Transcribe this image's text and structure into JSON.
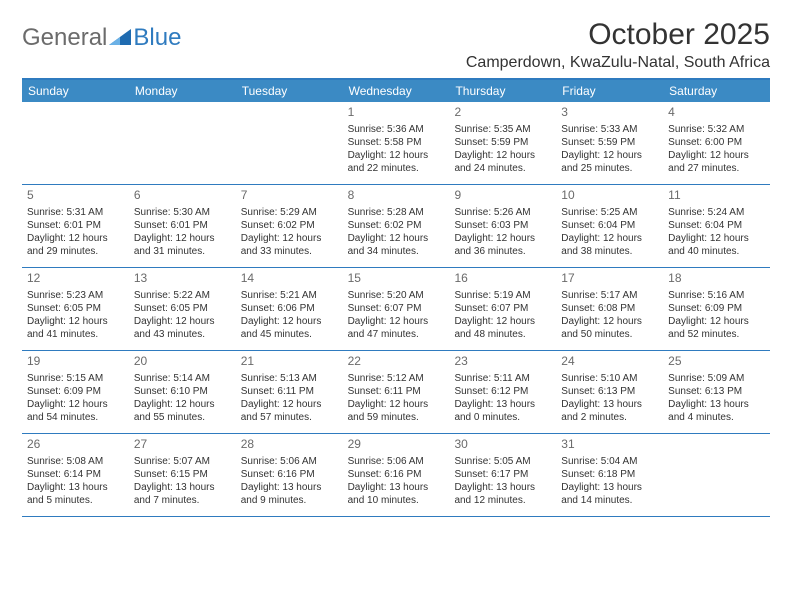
{
  "brand": {
    "part1": "General",
    "part2": "Blue"
  },
  "title": "October 2025",
  "location": "Camperdown, KwaZulu-Natal, South Africa",
  "colors": {
    "header_bg": "#3b8ac4",
    "border": "#2f7bbf",
    "text": "#333333",
    "daynum": "#6a6a6a"
  },
  "day_names": [
    "Sunday",
    "Monday",
    "Tuesday",
    "Wednesday",
    "Thursday",
    "Friday",
    "Saturday"
  ],
  "weeks": [
    [
      {
        "n": "",
        "empty": true
      },
      {
        "n": "",
        "empty": true
      },
      {
        "n": "",
        "empty": true
      },
      {
        "n": "1",
        "sr": "5:36 AM",
        "ss": "5:58 PM",
        "dl": "12 hours and 22 minutes."
      },
      {
        "n": "2",
        "sr": "5:35 AM",
        "ss": "5:59 PM",
        "dl": "12 hours and 24 minutes."
      },
      {
        "n": "3",
        "sr": "5:33 AM",
        "ss": "5:59 PM",
        "dl": "12 hours and 25 minutes."
      },
      {
        "n": "4",
        "sr": "5:32 AM",
        "ss": "6:00 PM",
        "dl": "12 hours and 27 minutes."
      }
    ],
    [
      {
        "n": "5",
        "sr": "5:31 AM",
        "ss": "6:01 PM",
        "dl": "12 hours and 29 minutes."
      },
      {
        "n": "6",
        "sr": "5:30 AM",
        "ss": "6:01 PM",
        "dl": "12 hours and 31 minutes."
      },
      {
        "n": "7",
        "sr": "5:29 AM",
        "ss": "6:02 PM",
        "dl": "12 hours and 33 minutes."
      },
      {
        "n": "8",
        "sr": "5:28 AM",
        "ss": "6:02 PM",
        "dl": "12 hours and 34 minutes."
      },
      {
        "n": "9",
        "sr": "5:26 AM",
        "ss": "6:03 PM",
        "dl": "12 hours and 36 minutes."
      },
      {
        "n": "10",
        "sr": "5:25 AM",
        "ss": "6:04 PM",
        "dl": "12 hours and 38 minutes."
      },
      {
        "n": "11",
        "sr": "5:24 AM",
        "ss": "6:04 PM",
        "dl": "12 hours and 40 minutes."
      }
    ],
    [
      {
        "n": "12",
        "sr": "5:23 AM",
        "ss": "6:05 PM",
        "dl": "12 hours and 41 minutes."
      },
      {
        "n": "13",
        "sr": "5:22 AM",
        "ss": "6:05 PM",
        "dl": "12 hours and 43 minutes."
      },
      {
        "n": "14",
        "sr": "5:21 AM",
        "ss": "6:06 PM",
        "dl": "12 hours and 45 minutes."
      },
      {
        "n": "15",
        "sr": "5:20 AM",
        "ss": "6:07 PM",
        "dl": "12 hours and 47 minutes."
      },
      {
        "n": "16",
        "sr": "5:19 AM",
        "ss": "6:07 PM",
        "dl": "12 hours and 48 minutes."
      },
      {
        "n": "17",
        "sr": "5:17 AM",
        "ss": "6:08 PM",
        "dl": "12 hours and 50 minutes."
      },
      {
        "n": "18",
        "sr": "5:16 AM",
        "ss": "6:09 PM",
        "dl": "12 hours and 52 minutes."
      }
    ],
    [
      {
        "n": "19",
        "sr": "5:15 AM",
        "ss": "6:09 PM",
        "dl": "12 hours and 54 minutes."
      },
      {
        "n": "20",
        "sr": "5:14 AM",
        "ss": "6:10 PM",
        "dl": "12 hours and 55 minutes."
      },
      {
        "n": "21",
        "sr": "5:13 AM",
        "ss": "6:11 PM",
        "dl": "12 hours and 57 minutes."
      },
      {
        "n": "22",
        "sr": "5:12 AM",
        "ss": "6:11 PM",
        "dl": "12 hours and 59 minutes."
      },
      {
        "n": "23",
        "sr": "5:11 AM",
        "ss": "6:12 PM",
        "dl": "13 hours and 0 minutes."
      },
      {
        "n": "24",
        "sr": "5:10 AM",
        "ss": "6:13 PM",
        "dl": "13 hours and 2 minutes."
      },
      {
        "n": "25",
        "sr": "5:09 AM",
        "ss": "6:13 PM",
        "dl": "13 hours and 4 minutes."
      }
    ],
    [
      {
        "n": "26",
        "sr": "5:08 AM",
        "ss": "6:14 PM",
        "dl": "13 hours and 5 minutes."
      },
      {
        "n": "27",
        "sr": "5:07 AM",
        "ss": "6:15 PM",
        "dl": "13 hours and 7 minutes."
      },
      {
        "n": "28",
        "sr": "5:06 AM",
        "ss": "6:16 PM",
        "dl": "13 hours and 9 minutes."
      },
      {
        "n": "29",
        "sr": "5:06 AM",
        "ss": "6:16 PM",
        "dl": "13 hours and 10 minutes."
      },
      {
        "n": "30",
        "sr": "5:05 AM",
        "ss": "6:17 PM",
        "dl": "13 hours and 12 minutes."
      },
      {
        "n": "31",
        "sr": "5:04 AM",
        "ss": "6:18 PM",
        "dl": "13 hours and 14 minutes."
      },
      {
        "n": "",
        "empty": true
      }
    ]
  ],
  "labels": {
    "sunrise": "Sunrise:",
    "sunset": "Sunset:",
    "daylight": "Daylight:"
  }
}
